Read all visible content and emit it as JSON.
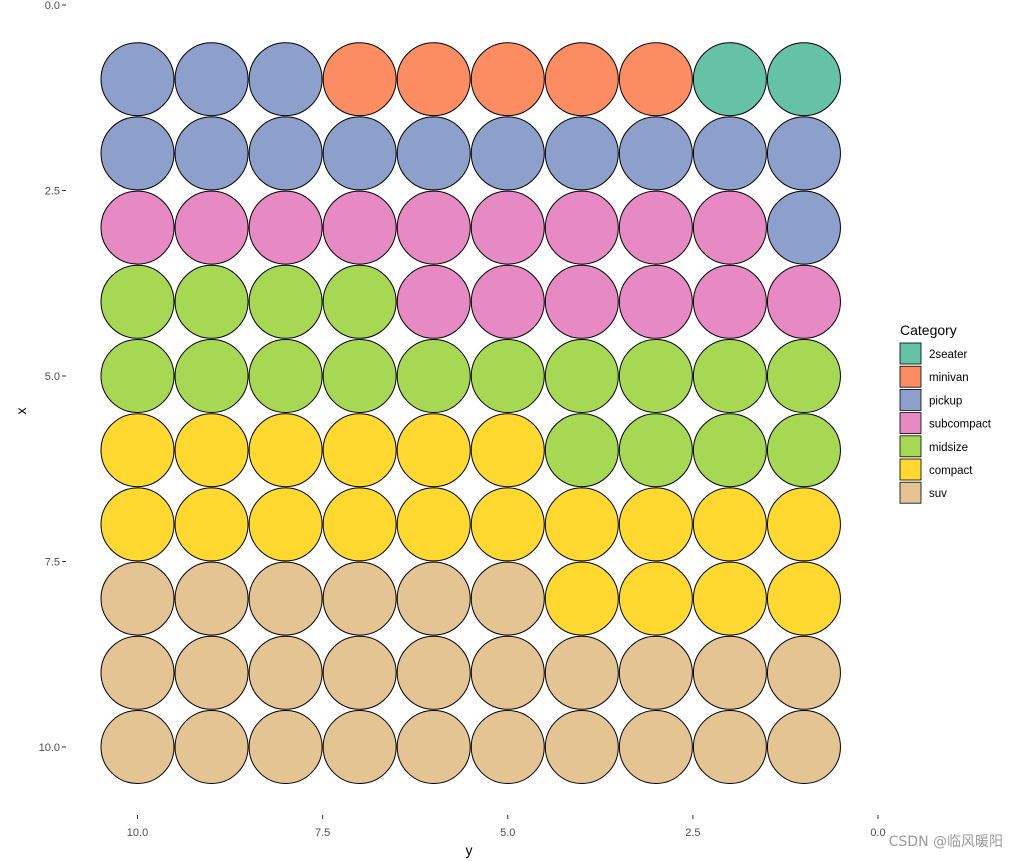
{
  "chart_data": {
    "type": "scatter",
    "subtype": "waffle",
    "title": "",
    "xlabel": "y",
    "ylabel": "x",
    "x_axis": {
      "range": [
        10.5,
        0
      ],
      "reversed": true,
      "ticks": [
        10.0,
        7.5,
        5.0,
        2.5,
        0.0
      ],
      "tick_labels": [
        "10.0",
        "7.5",
        "5.0",
        "2.5",
        "0.0"
      ]
    },
    "y_axis": {
      "range": [
        0,
        10.5
      ],
      "reversed": true,
      "ticks": [
        0.0,
        2.5,
        5.0,
        7.5,
        10.0
      ],
      "tick_labels": [
        "0.0",
        "2.5",
        "5.0",
        "7.5",
        "10.0"
      ]
    },
    "grid": false,
    "legend": {
      "title": "Category",
      "position": "right",
      "entries": [
        {
          "name": "2seater",
          "color": "#66C2A5"
        },
        {
          "name": "minivan",
          "color": "#FC8D62"
        },
        {
          "name": "pickup",
          "color": "#8DA0CB"
        },
        {
          "name": "subcompact",
          "color": "#E78AC3"
        },
        {
          "name": "midsize",
          "color": "#A6D854"
        },
        {
          "name": "compact",
          "color": "#FFD92F"
        },
        {
          "name": "suv",
          "color": "#E5C494"
        }
      ]
    },
    "rows": [
      {
        "x": 1,
        "categories": [
          "pickup",
          "pickup",
          "pickup",
          "minivan",
          "minivan",
          "minivan",
          "minivan",
          "minivan",
          "2seater",
          "2seater"
        ]
      },
      {
        "x": 2,
        "categories": [
          "pickup",
          "pickup",
          "pickup",
          "pickup",
          "pickup",
          "pickup",
          "pickup",
          "pickup",
          "pickup",
          "pickup"
        ]
      },
      {
        "x": 3,
        "categories": [
          "subcompact",
          "subcompact",
          "subcompact",
          "subcompact",
          "subcompact",
          "subcompact",
          "subcompact",
          "subcompact",
          "subcompact",
          "pickup"
        ]
      },
      {
        "x": 4,
        "categories": [
          "midsize",
          "midsize",
          "midsize",
          "midsize",
          "subcompact",
          "subcompact",
          "subcompact",
          "subcompact",
          "subcompact",
          "subcompact"
        ]
      },
      {
        "x": 5,
        "categories": [
          "midsize",
          "midsize",
          "midsize",
          "midsize",
          "midsize",
          "midsize",
          "midsize",
          "midsize",
          "midsize",
          "midsize"
        ]
      },
      {
        "x": 6,
        "categories": [
          "compact",
          "compact",
          "compact",
          "compact",
          "compact",
          "compact",
          "midsize",
          "midsize",
          "midsize",
          "midsize"
        ]
      },
      {
        "x": 7,
        "categories": [
          "compact",
          "compact",
          "compact",
          "compact",
          "compact",
          "compact",
          "compact",
          "compact",
          "compact",
          "compact"
        ]
      },
      {
        "x": 8,
        "categories": [
          "suv",
          "suv",
          "suv",
          "suv",
          "suv",
          "suv",
          "compact",
          "compact",
          "compact",
          "compact"
        ]
      },
      {
        "x": 9,
        "categories": [
          "suv",
          "suv",
          "suv",
          "suv",
          "suv",
          "suv",
          "suv",
          "suv",
          "suv",
          "suv"
        ]
      },
      {
        "x": 10,
        "categories": [
          "suv",
          "suv",
          "suv",
          "suv",
          "suv",
          "suv",
          "suv",
          "suv",
          "suv",
          "suv"
        ]
      }
    ],
    "y_values_per_column": [
      10,
      9,
      8,
      7,
      6,
      5,
      4,
      3,
      2,
      1
    ]
  },
  "watermark": "CSDN @临风暖阳"
}
